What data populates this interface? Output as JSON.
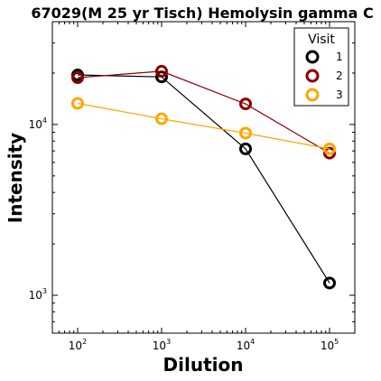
{
  "chart_data": {
    "type": "line",
    "title": "67029(M 25 yr Tisch) Hemolysin gamma C",
    "xlabel": "Dilution",
    "ylabel": "Intensity",
    "x_scale": "log",
    "y_scale": "log",
    "xlim": [
      50,
      200000
    ],
    "ylim": [
      600,
      40000
    ],
    "x_ticks": [
      {
        "value": 100,
        "base": "10",
        "exp": "2"
      },
      {
        "value": 1000,
        "base": "10",
        "exp": "3"
      },
      {
        "value": 10000,
        "base": "10",
        "exp": "4"
      },
      {
        "value": 100000,
        "base": "10",
        "exp": "5"
      }
    ],
    "y_ticks": [
      {
        "value": 1000,
        "base": "10",
        "exp": "3"
      },
      {
        "value": 10000,
        "base": "10",
        "exp": "4"
      }
    ],
    "legend": {
      "title": "Visit",
      "position": "top-right"
    },
    "x": [
      100,
      1000,
      10000,
      100000
    ],
    "series": [
      {
        "name": "1",
        "color": "#000000",
        "values": [
          19500,
          19000,
          7200,
          1180
        ]
      },
      {
        "name": "2",
        "color": "#8b0000",
        "values": [
          18800,
          20500,
          13200,
          6800
        ]
      },
      {
        "name": "3",
        "color": "#ffa500",
        "values": [
          13300,
          10800,
          8900,
          7200
        ]
      }
    ],
    "grid": false
  }
}
